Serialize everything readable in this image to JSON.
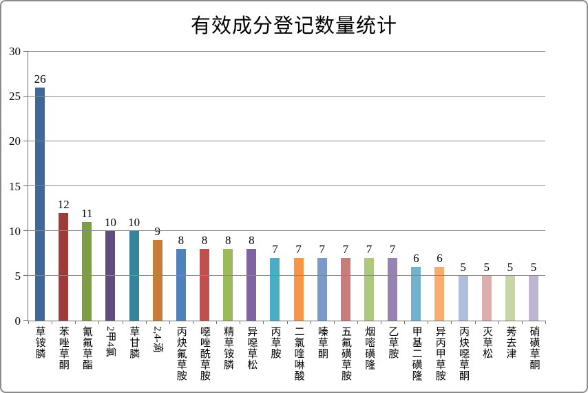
{
  "chart_data": {
    "type": "bar",
    "title": "有效成分登记数量统计",
    "categories": [
      "草铵膦",
      "苯唑草酮",
      "氰氟草酯",
      "2甲4氯",
      "草甘膦",
      "2,4-滴",
      "丙炔氟草胺",
      "噁唑酰草胺",
      "精草铵膦",
      "异噁草松",
      "丙草胺",
      "二氯喹啉酸",
      "嗪草酮",
      "五氟磺草胺",
      "烟嘧磺隆",
      "乙草胺",
      "甲基二磺隆",
      "异丙甲草胺",
      "丙炔噁草酮",
      "灭草松",
      "莠去津",
      "硝磺草酮"
    ],
    "values": [
      26,
      12,
      11,
      10,
      10,
      9,
      8,
      8,
      8,
      8,
      7,
      7,
      7,
      7,
      7,
      7,
      6,
      6,
      5,
      5,
      5,
      5
    ],
    "bar_colors": [
      "#3F6899",
      "#9E3B38",
      "#7E9D49",
      "#614C80",
      "#35849B",
      "#C97C38",
      "#4F81BD",
      "#C0504D",
      "#9BBB59",
      "#8064A2",
      "#4BACC6",
      "#F79646",
      "#7B99C9",
      "#C87D7B",
      "#ADC97E",
      "#9783B1",
      "#71B2CE",
      "#F9AC6E",
      "#AFBEDC",
      "#DCAEAC",
      "#C8D6A6",
      "#BEB5D3"
    ],
    "xlabel": "",
    "ylabel": "",
    "ylim": [
      0,
      30
    ],
    "yticks": [
      0,
      5,
      10,
      15,
      20,
      25,
      30
    ],
    "grid": true,
    "legend": false,
    "value_labels_shown": true,
    "grid_color": "#878787",
    "axis_color": "#6E6E6E",
    "text_color": "#000000",
    "background_color": "#FFFFFF"
  }
}
